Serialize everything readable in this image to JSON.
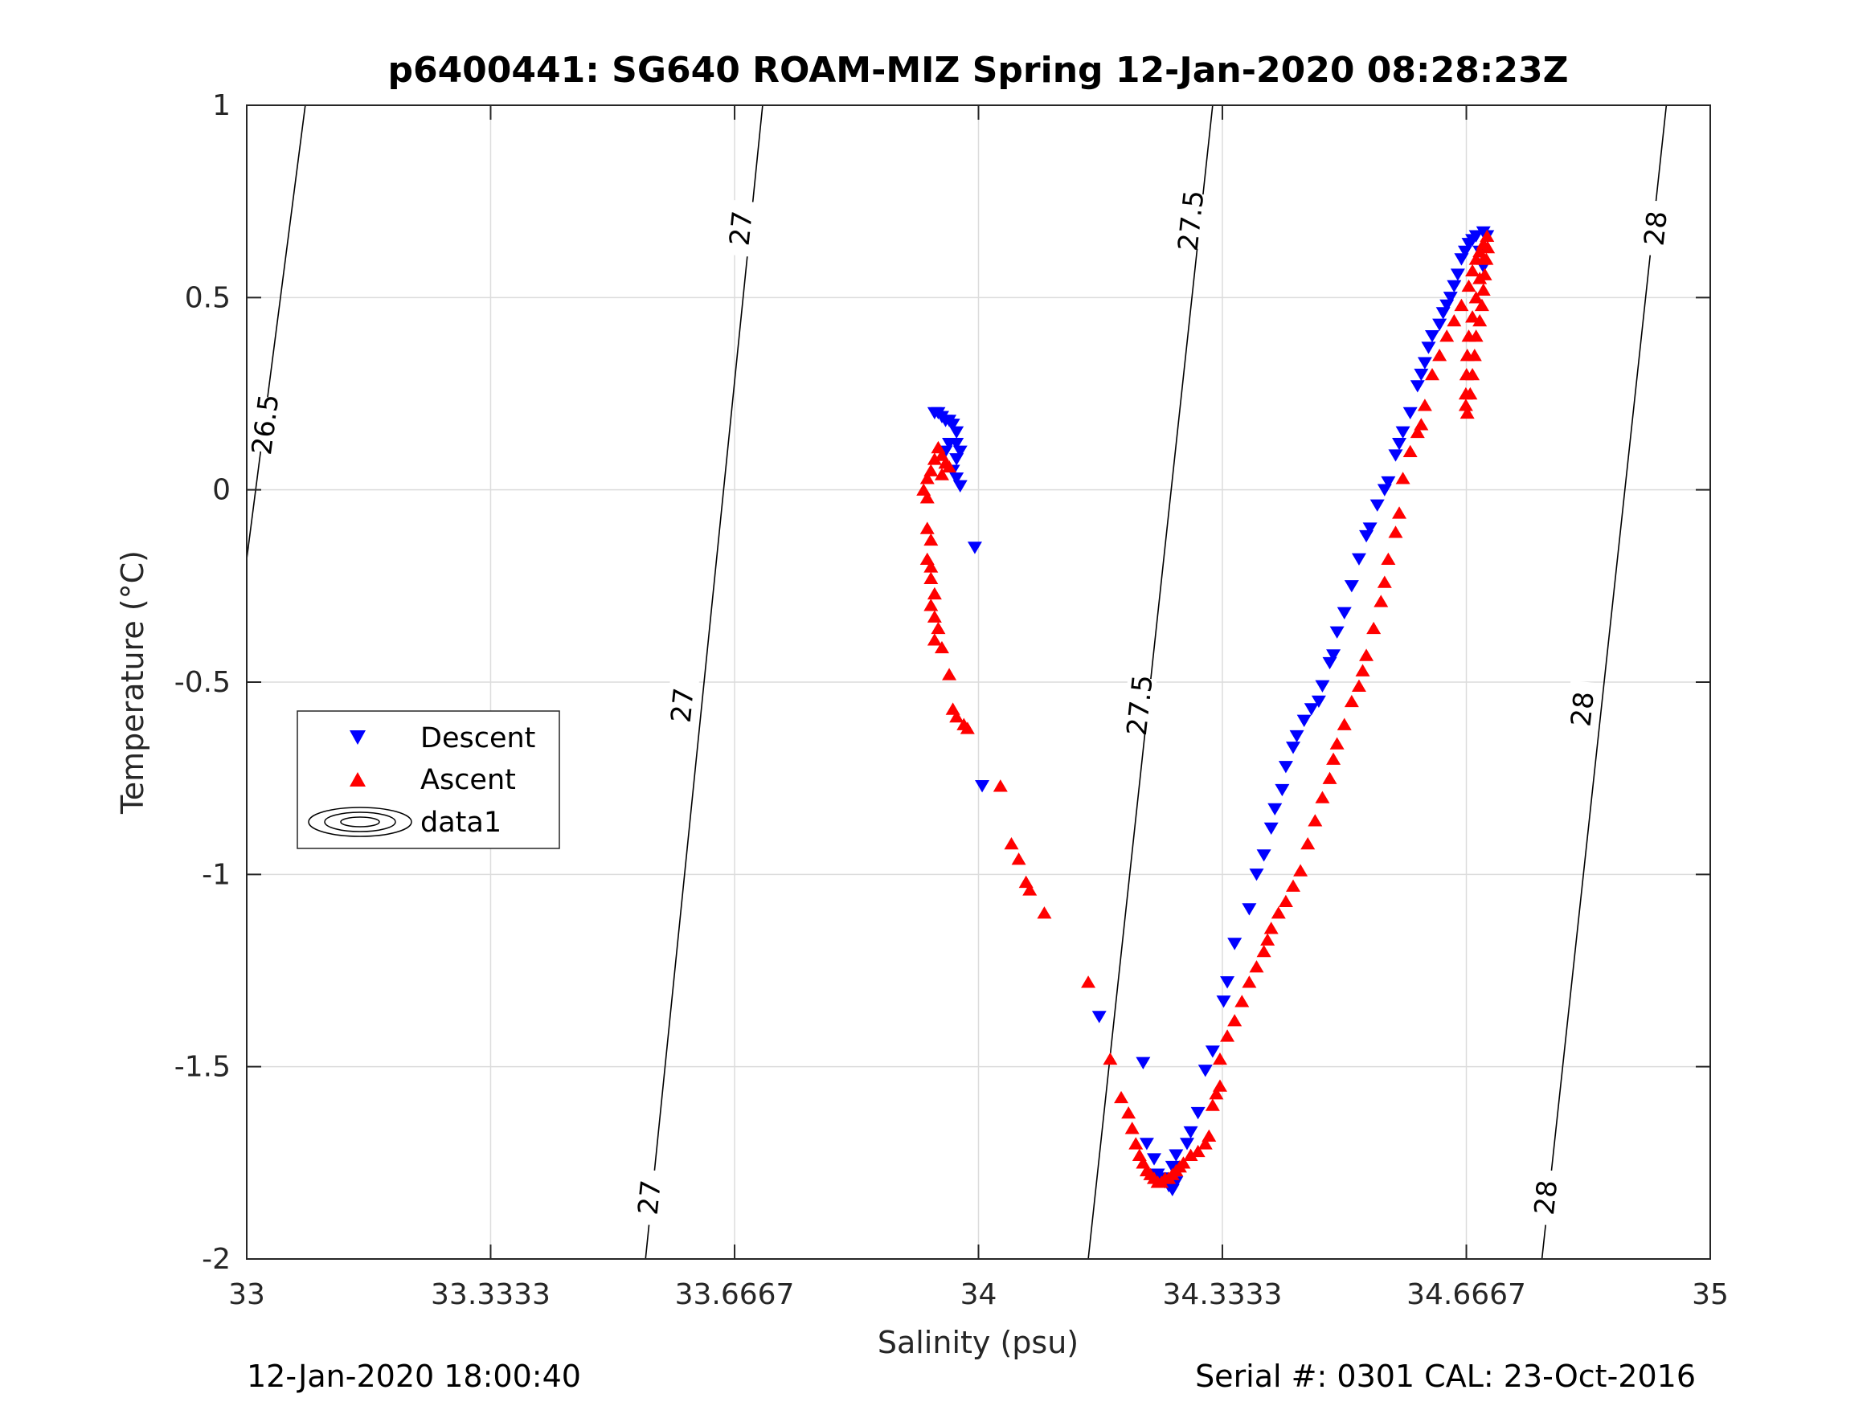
{
  "chart_data": {
    "type": "scatter",
    "title": "p6400441: SG640 ROAM-MIZ Spring 12-Jan-2020 08:28:23Z",
    "xlabel": "Salinity (psu)",
    "ylabel": "Temperature (°C)",
    "xlim": [
      33,
      35
    ],
    "ylim": [
      -2,
      1
    ],
    "xticks": [
      "33",
      "33.3333",
      "33.6667",
      "34",
      "34.3333",
      "34.6667",
      "35"
    ],
    "xtick_values": [
      33,
      33.3333,
      33.6667,
      34,
      34.3333,
      34.6667,
      35
    ],
    "yticks": [
      "1",
      "0.5",
      "0",
      "-0.5",
      "-1",
      "-1.5",
      "-2"
    ],
    "ytick_values": [
      1,
      0.5,
      0,
      -0.5,
      -1,
      -1.5,
      -2
    ],
    "grid": true,
    "legend_position": "middle-left",
    "legend": [
      {
        "label": "Descent",
        "marker": "triangle-down",
        "color": "#0000ff"
      },
      {
        "label": "Ascent",
        "marker": "triangle-up",
        "color": "#ff0000"
      },
      {
        "label": "data1",
        "marker": "contour"
      }
    ],
    "contours": [
      {
        "level": "26.5",
        "points": [
          [
            33.0,
            -0.18
          ],
          [
            33.08,
            1.0
          ]
        ],
        "labels": [
          {
            "x": 33.025,
            "y": 0.17
          }
        ]
      },
      {
        "level": "27",
        "points": [
          [
            33.545,
            -2.0
          ],
          [
            33.705,
            1.0
          ]
        ],
        "labels": [
          {
            "x": 33.55,
            "y": -1.84
          },
          {
            "x": 33.595,
            "y": -0.56
          },
          {
            "x": 33.675,
            "y": 0.68
          }
        ]
      },
      {
        "level": "27.5",
        "points": [
          [
            34.15,
            -2.0
          ],
          [
            34.32,
            1.0
          ]
        ],
        "labels": [
          {
            "x": 34.22,
            "y": -0.56
          },
          {
            "x": 34.29,
            "y": 0.7
          }
        ]
      },
      {
        "level": "28",
        "points": [
          [
            34.77,
            -2.0
          ],
          [
            34.94,
            1.0
          ]
        ],
        "labels": [
          {
            "x": 34.775,
            "y": -1.84
          },
          {
            "x": 34.825,
            "y": -0.57
          },
          {
            "x": 34.925,
            "y": 0.68
          }
        ]
      }
    ],
    "series": [
      {
        "name": "Descent",
        "marker": "triangle-down",
        "color": "#0000ff",
        "points": [
          [
            33.94,
            0.2
          ],
          [
            33.945,
            0.2
          ],
          [
            33.95,
            0.19
          ],
          [
            33.955,
            0.18
          ],
          [
            33.96,
            0.18
          ],
          [
            33.965,
            0.17
          ],
          [
            33.97,
            0.15
          ],
          [
            33.97,
            0.12
          ],
          [
            33.975,
            0.1
          ],
          [
            33.97,
            0.08
          ],
          [
            33.965,
            0.05
          ],
          [
            33.97,
            0.03
          ],
          [
            33.975,
            0.01
          ],
          [
            33.96,
            0.12
          ],
          [
            33.955,
            0.1
          ],
          [
            33.995,
            -0.15
          ],
          [
            34.005,
            -0.77
          ],
          [
            34.165,
            -1.37
          ],
          [
            34.225,
            -1.49
          ],
          [
            34.23,
            -1.7
          ],
          [
            34.24,
            -1.74
          ],
          [
            34.245,
            -1.78
          ],
          [
            34.25,
            -1.79
          ],
          [
            34.255,
            -1.8
          ],
          [
            34.26,
            -1.81
          ],
          [
            34.265,
            -1.82
          ],
          [
            34.27,
            -1.8
          ],
          [
            34.265,
            -1.76
          ],
          [
            34.27,
            -1.73
          ],
          [
            34.285,
            -1.7
          ],
          [
            34.29,
            -1.67
          ],
          [
            34.3,
            -1.62
          ],
          [
            34.31,
            -1.51
          ],
          [
            34.32,
            -1.46
          ],
          [
            34.335,
            -1.33
          ],
          [
            34.34,
            -1.28
          ],
          [
            34.35,
            -1.18
          ],
          [
            34.37,
            -1.09
          ],
          [
            34.38,
            -1.0
          ],
          [
            34.39,
            -0.95
          ],
          [
            34.4,
            -0.88
          ],
          [
            34.405,
            -0.83
          ],
          [
            34.415,
            -0.78
          ],
          [
            34.42,
            -0.72
          ],
          [
            34.43,
            -0.67
          ],
          [
            34.435,
            -0.64
          ],
          [
            34.445,
            -0.6
          ],
          [
            34.455,
            -0.57
          ],
          [
            34.465,
            -0.55
          ],
          [
            34.47,
            -0.51
          ],
          [
            34.48,
            -0.45
          ],
          [
            34.485,
            -0.43
          ],
          [
            34.49,
            -0.37
          ],
          [
            34.5,
            -0.32
          ],
          [
            34.51,
            -0.25
          ],
          [
            34.52,
            -0.18
          ],
          [
            34.53,
            -0.12
          ],
          [
            34.535,
            -0.1
          ],
          [
            34.545,
            -0.04
          ],
          [
            34.555,
            0.0
          ],
          [
            34.56,
            0.02
          ],
          [
            34.57,
            0.09
          ],
          [
            34.575,
            0.12
          ],
          [
            34.58,
            0.15
          ],
          [
            34.59,
            0.2
          ],
          [
            34.6,
            0.27
          ],
          [
            34.605,
            0.3
          ],
          [
            34.61,
            0.33
          ],
          [
            34.615,
            0.37
          ],
          [
            34.62,
            0.4
          ],
          [
            34.63,
            0.43
          ],
          [
            34.635,
            0.46
          ],
          [
            34.64,
            0.48
          ],
          [
            34.645,
            0.5
          ],
          [
            34.65,
            0.53
          ],
          [
            34.655,
            0.56
          ],
          [
            34.66,
            0.6
          ],
          [
            34.665,
            0.62
          ],
          [
            34.67,
            0.64
          ],
          [
            34.675,
            0.65
          ],
          [
            34.68,
            0.66
          ],
          [
            34.69,
            0.67
          ],
          [
            34.695,
            0.66
          ],
          [
            34.685,
            0.62
          ],
          [
            34.69,
            0.58
          ]
        ]
      },
      {
        "name": "Ascent",
        "marker": "triangle-up",
        "color": "#ff0000",
        "points": [
          [
            33.925,
            0.0
          ],
          [
            33.93,
            0.03
          ],
          [
            33.935,
            0.05
          ],
          [
            33.94,
            0.08
          ],
          [
            33.945,
            0.11
          ],
          [
            33.95,
            0.09
          ],
          [
            33.955,
            0.07
          ],
          [
            33.96,
            0.06
          ],
          [
            33.95,
            0.04
          ],
          [
            33.93,
            -0.02
          ],
          [
            33.93,
            -0.1
          ],
          [
            33.935,
            -0.13
          ],
          [
            33.93,
            -0.18
          ],
          [
            33.935,
            -0.2
          ],
          [
            33.935,
            -0.23
          ],
          [
            33.94,
            -0.27
          ],
          [
            33.935,
            -0.3
          ],
          [
            33.94,
            -0.33
          ],
          [
            33.945,
            -0.36
          ],
          [
            33.94,
            -0.39
          ],
          [
            33.95,
            -0.41
          ],
          [
            33.96,
            -0.48
          ],
          [
            33.965,
            -0.57
          ],
          [
            33.97,
            -0.59
          ],
          [
            33.98,
            -0.61
          ],
          [
            33.985,
            -0.62
          ],
          [
            34.03,
            -0.77
          ],
          [
            34.045,
            -0.92
          ],
          [
            34.055,
            -0.96
          ],
          [
            34.065,
            -1.02
          ],
          [
            34.07,
            -1.04
          ],
          [
            34.09,
            -1.1
          ],
          [
            34.15,
            -1.28
          ],
          [
            34.18,
            -1.48
          ],
          [
            34.195,
            -1.58
          ],
          [
            34.205,
            -1.62
          ],
          [
            34.21,
            -1.66
          ],
          [
            34.215,
            -1.7
          ],
          [
            34.22,
            -1.73
          ],
          [
            34.225,
            -1.75
          ],
          [
            34.23,
            -1.77
          ],
          [
            34.235,
            -1.78
          ],
          [
            34.24,
            -1.79
          ],
          [
            34.245,
            -1.8
          ],
          [
            34.25,
            -1.8
          ],
          [
            34.255,
            -1.79
          ],
          [
            34.26,
            -1.79
          ],
          [
            34.265,
            -1.78
          ],
          [
            34.27,
            -1.77
          ],
          [
            34.275,
            -1.76
          ],
          [
            34.28,
            -1.75
          ],
          [
            34.29,
            -1.73
          ],
          [
            34.3,
            -1.72
          ],
          [
            34.31,
            -1.7
          ],
          [
            34.315,
            -1.68
          ],
          [
            34.32,
            -1.6
          ],
          [
            34.325,
            -1.57
          ],
          [
            34.33,
            -1.55
          ],
          [
            34.33,
            -1.48
          ],
          [
            34.34,
            -1.42
          ],
          [
            34.35,
            -1.38
          ],
          [
            34.36,
            -1.33
          ],
          [
            34.37,
            -1.28
          ],
          [
            34.38,
            -1.24
          ],
          [
            34.39,
            -1.2
          ],
          [
            34.395,
            -1.17
          ],
          [
            34.4,
            -1.14
          ],
          [
            34.41,
            -1.1
          ],
          [
            34.42,
            -1.07
          ],
          [
            34.43,
            -1.03
          ],
          [
            34.44,
            -0.99
          ],
          [
            34.45,
            -0.92
          ],
          [
            34.46,
            -0.86
          ],
          [
            34.47,
            -0.8
          ],
          [
            34.48,
            -0.75
          ],
          [
            34.485,
            -0.7
          ],
          [
            34.49,
            -0.66
          ],
          [
            34.5,
            -0.61
          ],
          [
            34.51,
            -0.55
          ],
          [
            34.52,
            -0.51
          ],
          [
            34.525,
            -0.47
          ],
          [
            34.53,
            -0.43
          ],
          [
            34.54,
            -0.36
          ],
          [
            34.55,
            -0.29
          ],
          [
            34.555,
            -0.24
          ],
          [
            34.56,
            -0.18
          ],
          [
            34.57,
            -0.11
          ],
          [
            34.575,
            -0.06
          ],
          [
            34.58,
            0.03
          ],
          [
            34.59,
            0.1
          ],
          [
            34.6,
            0.15
          ],
          [
            34.605,
            0.17
          ],
          [
            34.61,
            0.22
          ],
          [
            34.62,
            0.3
          ],
          [
            34.63,
            0.35
          ],
          [
            34.64,
            0.4
          ],
          [
            34.65,
            0.44
          ],
          [
            34.66,
            0.48
          ],
          [
            34.67,
            0.53
          ],
          [
            34.675,
            0.57
          ],
          [
            34.68,
            0.6
          ],
          [
            34.685,
            0.62
          ],
          [
            34.69,
            0.64
          ],
          [
            34.695,
            0.66
          ],
          [
            34.69,
            0.6
          ],
          [
            34.685,
            0.55
          ],
          [
            34.68,
            0.5
          ],
          [
            34.675,
            0.45
          ],
          [
            34.67,
            0.4
          ],
          [
            34.668,
            0.35
          ],
          [
            34.667,
            0.3
          ],
          [
            34.666,
            0.25
          ],
          [
            34.666,
            0.22
          ],
          [
            34.668,
            0.2
          ],
          [
            34.672,
            0.25
          ],
          [
            34.675,
            0.3
          ],
          [
            34.678,
            0.35
          ],
          [
            34.68,
            0.4
          ],
          [
            34.685,
            0.44
          ],
          [
            34.688,
            0.48
          ],
          [
            34.69,
            0.52
          ],
          [
            34.692,
            0.56
          ],
          [
            34.694,
            0.6
          ],
          [
            34.696,
            0.63
          ]
        ]
      }
    ]
  },
  "footer": {
    "left": "12-Jan-2020 18:00:40",
    "right": "Serial #: 0301  CAL: 23-Oct-2016"
  }
}
